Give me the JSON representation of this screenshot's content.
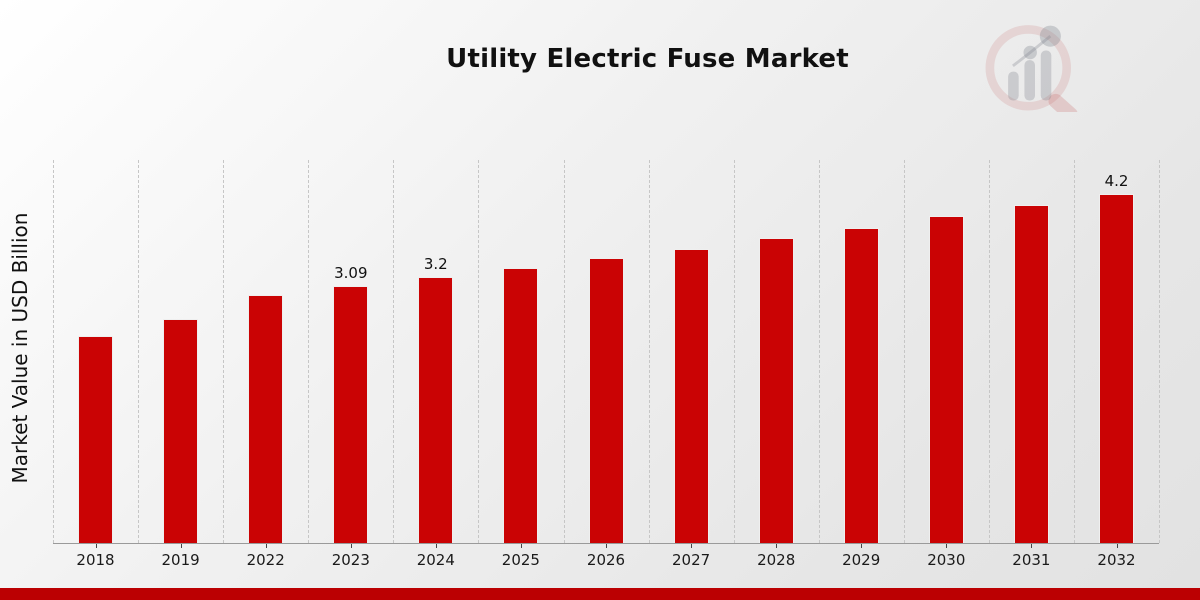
{
  "title": "Utility Electric Fuse Market",
  "colors": {
    "bar": "#CA0304",
    "footer_band": "#BB0002",
    "grid": "#c6c6c6",
    "axis_line": "#9a9a9a",
    "text": "#111111"
  },
  "icons": {
    "watermark": "magnifier-bar-chart-logo"
  },
  "chart_data": {
    "type": "bar",
    "title": "Utility Electric Fuse Market",
    "xlabel": "",
    "ylabel": "Market Value in USD Billion",
    "categories": [
      "2018",
      "2019",
      "2022",
      "2023",
      "2024",
      "2025",
      "2026",
      "2027",
      "2028",
      "2029",
      "2030",
      "2031",
      "2032"
    ],
    "values": [
      2.49,
      2.7,
      2.99,
      3.09,
      3.2,
      3.31,
      3.43,
      3.54,
      3.67,
      3.79,
      3.94,
      4.07,
      4.2
    ],
    "data_labels": [
      "",
      "",
      "",
      "3.09",
      "3.2",
      "",
      "",
      "",
      "",
      "",
      "",
      "",
      "4.2"
    ],
    "ylim": [
      0,
      4.61
    ],
    "grid": "vertical-dashed-at-category-boundaries",
    "legend": "none",
    "bar_color": "#CA0304"
  }
}
